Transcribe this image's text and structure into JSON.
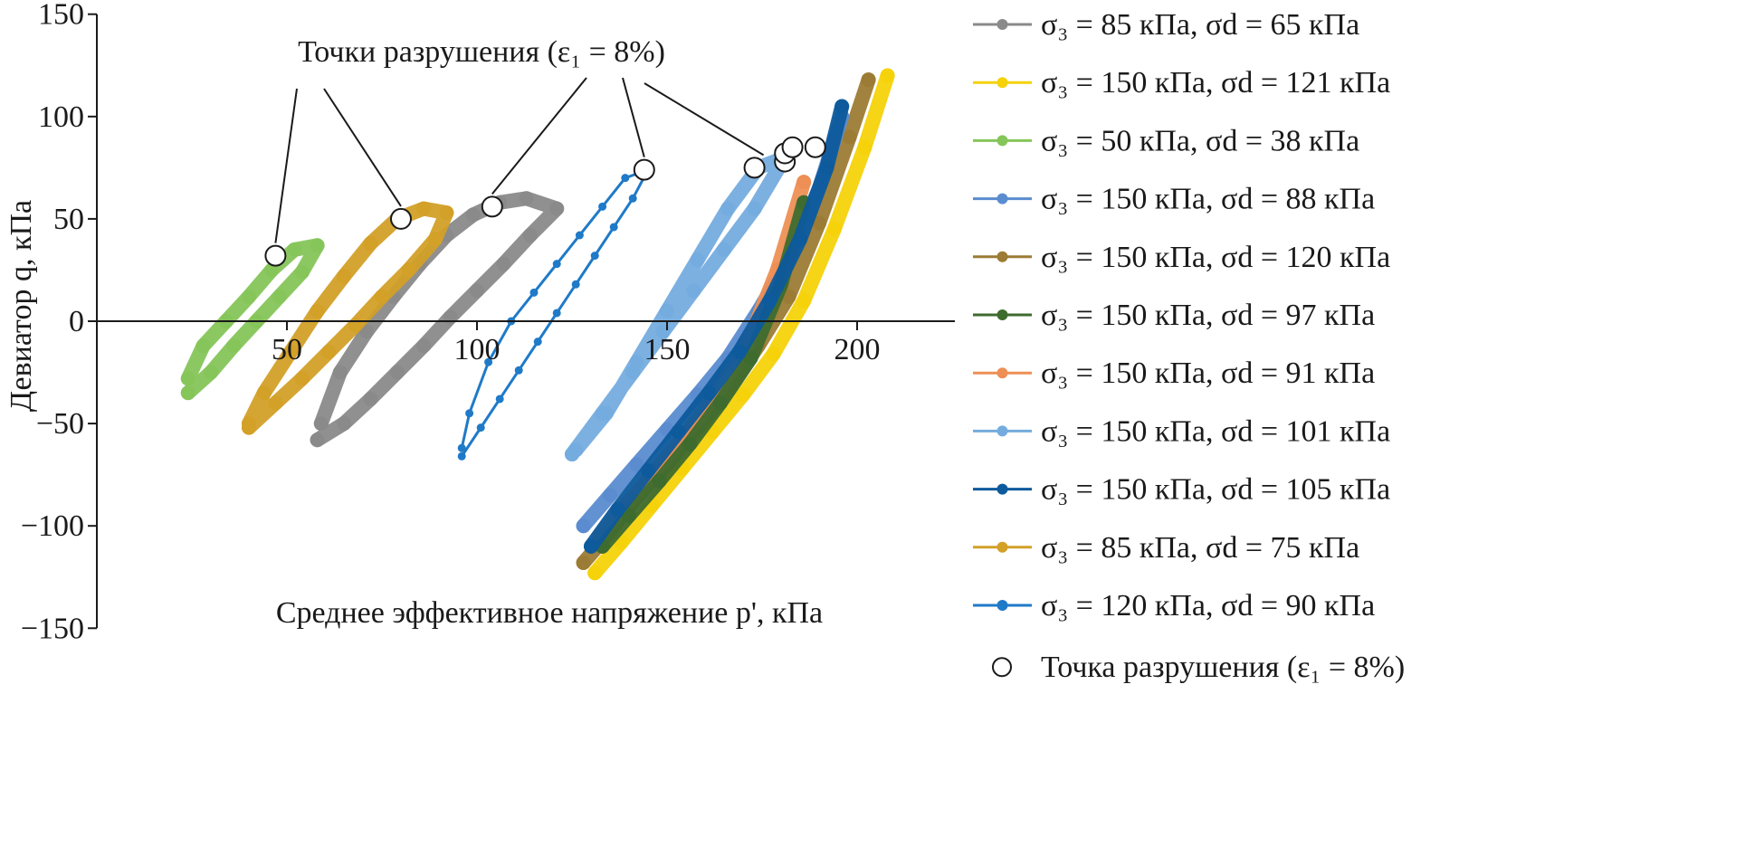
{
  "chart_data": {
    "type": "scatter",
    "title": "",
    "xlabel": "Среднее эффективное напряжение p', кПа",
    "ylabel": "Девиатор q, кПа",
    "xlim": [
      0,
      225
    ],
    "ylim": [
      -150,
      150
    ],
    "x_ticks": [
      50,
      100,
      150,
      200
    ],
    "y_ticks": [
      150,
      100,
      50,
      0,
      -50,
      -100,
      -150
    ],
    "grid": false,
    "legend_placement": "right",
    "annotation": "Точки разрушения (ε₁ = 8%)",
    "series": [
      {
        "name": "σ₃ = 85 кПа, σd = 65 кПа",
        "color": "#8a8a8a",
        "x": [
          58,
          65,
          72,
          79,
          86,
          93,
          100,
          107,
          114,
          121,
          113,
          106,
          99,
          92,
          85,
          78,
          71,
          64,
          59
        ],
        "y": [
          -58,
          -50,
          -38,
          -25,
          -12,
          2,
          15,
          28,
          42,
          55,
          60,
          58,
          52,
          42,
          28,
          12,
          -5,
          -25,
          -50
        ]
      },
      {
        "name": "σ₃ = 150 кПа, σd = 121 кПа",
        "color": "#f5d20a",
        "x": [
          131,
          138,
          146,
          154,
          162,
          170,
          178,
          186,
          194,
          202,
          208
        ],
        "y": [
          -123,
          -108,
          -90,
          -72,
          -54,
          -36,
          -16,
          10,
          45,
          85,
          120
        ]
      },
      {
        "name": "σ₃ = 50 кПа, σd = 38 кПа",
        "color": "#86c55a",
        "x": [
          24,
          30,
          36,
          42,
          48,
          54,
          58,
          52,
          46,
          40,
          34,
          28,
          24
        ],
        "y": [
          -35,
          -25,
          -12,
          0,
          12,
          24,
          37,
          35,
          25,
          12,
          0,
          -12,
          -28
        ]
      },
      {
        "name": "σ₃ = 150 кПа, σd = 88 кПа",
        "color": "#5a8ccf",
        "x": [
          128,
          135,
          142,
          150,
          158,
          166,
          174,
          182,
          190,
          196
        ],
        "y": [
          -100,
          -85,
          -70,
          -53,
          -36,
          -18,
          5,
          30,
          65,
          100
        ]
      },
      {
        "name": "σ₃ = 150 кПа, σd = 120 кПа",
        "color": "#9c7b34",
        "x": [
          128,
          135,
          142,
          150,
          158,
          166,
          174,
          182,
          190,
          198,
          203
        ],
        "y": [
          -118,
          -103,
          -86,
          -70,
          -52,
          -34,
          -12,
          12,
          48,
          90,
          118
        ]
      },
      {
        "name": "σ₃ = 150 кПа, σd = 97 кПа",
        "color": "#3e6b2e",
        "x": [
          133,
          140,
          148,
          156,
          164,
          172,
          180,
          186
        ],
        "y": [
          -110,
          -95,
          -78,
          -60,
          -40,
          -18,
          18,
          58
        ]
      },
      {
        "name": "σ₃ = 150 кПа, σd = 91 кПа",
        "color": "#ee8f55",
        "x": [
          132,
          139,
          147,
          155,
          163,
          171,
          179,
          186
        ],
        "y": [
          -105,
          -90,
          -73,
          -55,
          -36,
          -12,
          25,
          68
        ]
      },
      {
        "name": "σ₃ = 150 кПа, σd = 101 кПа",
        "color": "#74acdf",
        "x": [
          125,
          133,
          141,
          149,
          157,
          165,
          173,
          181,
          174,
          166,
          158,
          150,
          142,
          134,
          126
        ],
        "y": [
          -65,
          -45,
          -25,
          -5,
          15,
          35,
          55,
          80,
          75,
          55,
          30,
          5,
          -20,
          -45,
          -63
        ]
      },
      {
        "name": "σ₃ = 150 кПа, σd = 105 кПа",
        "color": "#0d5a9c",
        "x": [
          130,
          137,
          145,
          153,
          161,
          169,
          177,
          185,
          192,
          196
        ],
        "y": [
          -110,
          -92,
          -73,
          -54,
          -35,
          -15,
          10,
          40,
          75,
          105
        ]
      },
      {
        "name": "σ₃ = 85 кПа, σd = 75 кПа",
        "color": "#d3a028",
        "x": [
          40,
          47,
          54,
          61,
          68,
          75,
          82,
          89,
          92,
          86,
          79,
          72,
          65,
          58,
          51,
          44,
          40
        ],
        "y": [
          -52,
          -40,
          -28,
          -15,
          -2,
          12,
          25,
          40,
          53,
          55,
          50,
          38,
          22,
          5,
          -15,
          -35,
          -50
        ]
      },
      {
        "name": "σ₃ = 120 кПа, σd = 90 кПа",
        "color": "#1f7ac8",
        "x": [
          96,
          101,
          106,
          111,
          116,
          121,
          126,
          131,
          136,
          141,
          145,
          139,
          133,
          127,
          121,
          115,
          109,
          103,
          98,
          96
        ],
        "y": [
          -66,
          -52,
          -38,
          -24,
          -10,
          4,
          18,
          32,
          46,
          60,
          74,
          70,
          56,
          42,
          28,
          14,
          0,
          -20,
          -45,
          -62
        ]
      }
    ],
    "failure_points": {
      "name": "Точка разрушения (ε₁ = 8%)",
      "x": [
        47,
        80,
        104,
        144,
        173,
        181,
        181,
        183,
        189
      ],
      "y": [
        32,
        50,
        56,
        74,
        75,
        78,
        82,
        85,
        85
      ]
    }
  }
}
